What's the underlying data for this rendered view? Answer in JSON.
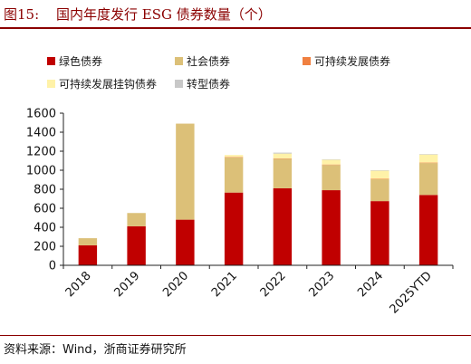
{
  "header": {
    "figure_label": "图15:",
    "title": "国内年度发行 ESG 债券数量（个）"
  },
  "legend": [
    {
      "label": "绿色债券",
      "color": "#c00000"
    },
    {
      "label": "社会债券",
      "color": "#dcc078"
    },
    {
      "label": "可持续发展债券",
      "color": "#f08040"
    },
    {
      "label": "可持续发展挂钩债券",
      "color": "#fff2a8"
    },
    {
      "label": "转型债券",
      "color": "#c8c8c8"
    }
  ],
  "footer": {
    "source": "资料来源：Wind，浙商证券研究所"
  },
  "chart_data": {
    "type": "bar",
    "stacked": true,
    "title": "国内年度发行 ESG 债券数量（个）",
    "categories": [
      "2018",
      "2019",
      "2020",
      "2021",
      "2022",
      "2023",
      "2024",
      "2025YTD"
    ],
    "ylim": [
      0,
      1600
    ],
    "yticks": [
      0,
      200,
      400,
      600,
      800,
      1000,
      1200,
      1400,
      1600
    ],
    "series": [
      {
        "name": "绿色债券",
        "color": "#c00000",
        "values": [
          210,
          410,
          480,
          765,
          810,
          790,
          675,
          740
        ]
      },
      {
        "name": "社会债券",
        "color": "#dcc078",
        "values": [
          75,
          140,
          1010,
          370,
          310,
          265,
          230,
          335
        ]
      },
      {
        "name": "可持续发展债券",
        "color": "#f08040",
        "values": [
          0,
          0,
          0,
          5,
          5,
          5,
          5,
          5
        ]
      },
      {
        "name": "可持续发展挂钩债券",
        "color": "#fff2a8",
        "values": [
          0,
          0,
          0,
          20,
          50,
          50,
          85,
          85
        ]
      },
      {
        "name": "转型债券",
        "color": "#c8c8c8",
        "values": [
          0,
          0,
          0,
          0,
          10,
          5,
          5,
          5
        ]
      }
    ],
    "grid": false,
    "legend_position": "top"
  }
}
